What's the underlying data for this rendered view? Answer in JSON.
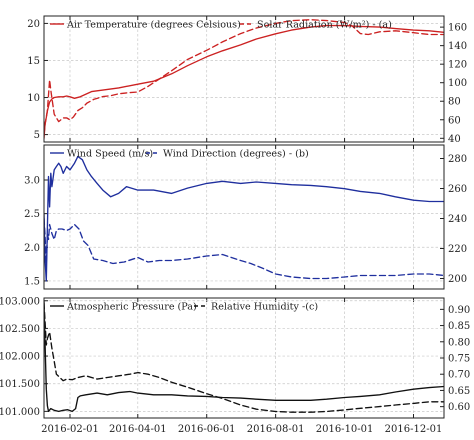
{
  "chart_data": [
    {
      "type": "line",
      "title": "",
      "xlabel": "",
      "ylabel": "",
      "grid": true,
      "legend_placement": "top-left",
      "x_ticks": [
        "2016-02-01",
        "2016-04-01",
        "2016-06-01",
        "2016-08-01",
        "2016-10-01",
        "2016-12-01"
      ],
      "y_left": {
        "lim": [
          4,
          21
        ],
        "ticks": [
          "5",
          "10",
          "15",
          "20"
        ]
      },
      "y_right": {
        "lim": [
          36,
          172
        ],
        "ticks": [
          "40",
          "60",
          "80",
          "100",
          "120",
          "140",
          "160"
        ]
      },
      "legend": [
        {
          "label": "Air Temperature (degrees Celsious)",
          "series": 0
        },
        {
          "label": "Solar Radiation (W/m²) - (a)",
          "series": 1
        }
      ],
      "series": [
        {
          "name": "Air Temperature (degrees Celsious)",
          "axis": "left",
          "color": "#cc2222",
          "dash": "solid",
          "x": [
            "2016-01-09",
            "2016-01-10",
            "2016-01-11",
            "2016-01-12",
            "2016-01-13",
            "2016-01-14",
            "2016-01-16",
            "2016-01-18",
            "2016-01-22",
            "2016-01-26",
            "2016-01-29",
            "2016-02-01",
            "2016-02-05",
            "2016-02-10",
            "2016-02-20",
            "2016-03-01",
            "2016-03-15",
            "2016-04-01",
            "2016-04-15",
            "2016-05-01",
            "2016-05-15",
            "2016-06-01",
            "2016-06-15",
            "2016-07-01",
            "2016-07-15",
            "2016-08-01",
            "2016-08-15",
            "2016-09-01",
            "2016-09-15",
            "2016-10-01",
            "2016-10-15",
            "2016-11-01",
            "2016-11-15",
            "2016-12-01",
            "2016-12-15",
            "2016-12-28"
          ],
          "values": [
            4.5,
            6.5,
            7.3,
            8.2,
            8.8,
            9.4,
            9.8,
            10.0,
            10.1,
            10.1,
            10.2,
            10.1,
            9.9,
            10.1,
            10.8,
            11.0,
            11.3,
            11.8,
            12.2,
            13.2,
            14.3,
            15.5,
            16.3,
            17.1,
            17.9,
            18.6,
            19.1,
            19.5,
            19.7,
            19.7,
            19.6,
            19.5,
            19.3,
            19.1,
            19.0,
            18.8
          ]
        },
        {
          "name": "Solar Radiation (W/m²) - (a)",
          "axis": "right",
          "color": "#cc2222",
          "dash": "dashed",
          "x": [
            "2016-01-09",
            "2016-01-10",
            "2016-01-12",
            "2016-01-14",
            "2016-01-15",
            "2016-01-18",
            "2016-01-22",
            "2016-01-26",
            "2016-01-29",
            "2016-02-01",
            "2016-02-04",
            "2016-02-08",
            "2016-02-12",
            "2016-02-16",
            "2016-02-22",
            "2016-03-01",
            "2016-03-08",
            "2016-03-15",
            "2016-03-22",
            "2016-04-01",
            "2016-04-10",
            "2016-04-20",
            "2016-05-01",
            "2016-05-15",
            "2016-06-01",
            "2016-06-15",
            "2016-07-01",
            "2016-07-15",
            "2016-08-01",
            "2016-08-15",
            "2016-09-01",
            "2016-09-15",
            "2016-10-01",
            "2016-10-08",
            "2016-10-15",
            "2016-10-22",
            "2016-11-01",
            "2016-11-15",
            "2016-12-01",
            "2016-12-15",
            "2016-12-28"
          ],
          "values": [
            44,
            55,
            70,
            103,
            92,
            66,
            58,
            62,
            62,
            60,
            63,
            70,
            73,
            78,
            82,
            85,
            86,
            88,
            89,
            90,
            96,
            104,
            113,
            125,
            135,
            144,
            153,
            159,
            164,
            167,
            168,
            167,
            165,
            161,
            153,
            152,
            155,
            156,
            154,
            152,
            152
          ]
        }
      ]
    },
    {
      "type": "line",
      "title": "",
      "xlabel": "",
      "ylabel": "",
      "grid": true,
      "legend_placement": "top-left",
      "x_ticks": [
        "2016-02-01",
        "2016-04-01",
        "2016-06-01",
        "2016-08-01",
        "2016-10-01",
        "2016-12-01"
      ],
      "y_left": {
        "lim": [
          1.38,
          3.52
        ],
        "ticks": [
          "1.5",
          "2.0",
          "2.5",
          "3.0"
        ]
      },
      "y_right": {
        "lim": [
          193,
          289
        ],
        "ticks": [
          "200",
          "220",
          "240",
          "260",
          "280"
        ]
      },
      "legend": [
        {
          "label": "Wind Speed (m/s)",
          "series": 0
        },
        {
          "label": "Wind Direction (degrees) - (b)",
          "series": 1
        }
      ],
      "series": [
        {
          "name": "Wind Speed (m/s)",
          "axis": "left",
          "color": "#1f2f9e",
          "dash": "solid",
          "x": [
            "2016-01-09",
            "2016-01-10",
            "2016-01-11",
            "2016-01-12",
            "2016-01-13",
            "2016-01-14",
            "2016-01-15",
            "2016-01-16",
            "2016-01-18",
            "2016-01-20",
            "2016-01-22",
            "2016-01-24",
            "2016-01-26",
            "2016-01-29",
            "2016-02-01",
            "2016-02-05",
            "2016-02-08",
            "2016-02-12",
            "2016-02-16",
            "2016-02-20",
            "2016-02-25",
            "2016-03-01",
            "2016-03-08",
            "2016-03-15",
            "2016-03-22",
            "2016-04-01",
            "2016-04-15",
            "2016-05-01",
            "2016-05-15",
            "2016-06-01",
            "2016-06-15",
            "2016-07-01",
            "2016-07-15",
            "2016-08-01",
            "2016-08-15",
            "2016-09-01",
            "2016-09-15",
            "2016-10-01",
            "2016-10-15",
            "2016-11-01",
            "2016-11-15",
            "2016-12-01",
            "2016-12-15",
            "2016-12-28"
          ],
          "values": [
            2.5,
            1.8,
            1.5,
            2.3,
            3.05,
            2.6,
            3.1,
            2.9,
            3.15,
            3.2,
            3.25,
            3.2,
            3.1,
            3.2,
            3.15,
            3.25,
            3.35,
            3.3,
            3.15,
            3.05,
            2.95,
            2.85,
            2.75,
            2.8,
            2.9,
            2.85,
            2.85,
            2.8,
            2.88,
            2.95,
            2.98,
            2.95,
            2.97,
            2.95,
            2.93,
            2.92,
            2.9,
            2.87,
            2.83,
            2.8,
            2.75,
            2.7,
            2.68,
            2.68
          ]
        },
        {
          "name": "Wind Direction (degrees) - (b)",
          "axis": "right",
          "color": "#1f2f9e",
          "dash": "dashed",
          "x": [
            "2016-01-09",
            "2016-01-10",
            "2016-01-11",
            "2016-01-12",
            "2016-01-13",
            "2016-01-14",
            "2016-01-16",
            "2016-01-18",
            "2016-01-20",
            "2016-01-22",
            "2016-01-25",
            "2016-01-29",
            "2016-02-01",
            "2016-02-05",
            "2016-02-09",
            "2016-02-13",
            "2016-02-17",
            "2016-02-22",
            "2016-03-01",
            "2016-03-10",
            "2016-03-20",
            "2016-04-01",
            "2016-04-10",
            "2016-04-20",
            "2016-05-01",
            "2016-05-15",
            "2016-06-01",
            "2016-06-15",
            "2016-07-01",
            "2016-07-10",
            "2016-07-20",
            "2016-08-01",
            "2016-08-15",
            "2016-09-01",
            "2016-09-15",
            "2016-10-01",
            "2016-10-15",
            "2016-11-01",
            "2016-11-15",
            "2016-12-01",
            "2016-12-15",
            "2016-12-28"
          ],
          "values": [
            240,
            228,
            210,
            230,
            226,
            236,
            230,
            226,
            232,
            233,
            233,
            232,
            233,
            236,
            233,
            225,
            222,
            213,
            212,
            210,
            211,
            214,
            211,
            212,
            212,
            213,
            215,
            216,
            212,
            210,
            207,
            203,
            201,
            200,
            200,
            201,
            202,
            202,
            202,
            203,
            203,
            202
          ]
        }
      ]
    },
    {
      "type": "line",
      "title": "",
      "xlabel": "",
      "ylabel": "",
      "grid": true,
      "legend_placement": "top-left",
      "x_ticks": [
        "2016-02-01",
        "2016-04-01",
        "2016-06-01",
        "2016-08-01",
        "2016-10-01",
        "2016-12-01"
      ],
      "y_left": {
        "lim": [
          100.88,
          103.05
        ],
        "ticks": [
          "101.000",
          "101.500",
          "102.000",
          "102.500",
          "103.000"
        ]
      },
      "y_right": {
        "lim": [
          0.565,
          0.935
        ],
        "ticks": [
          "0.60",
          "0.65",
          "0.70",
          "0.75",
          "0.80",
          "0.85",
          "0.90"
        ]
      },
      "legend": [
        {
          "label": "Atmospheric Pressure (Pa)",
          "series": 0
        },
        {
          "label": "Relative Humidity -(c)",
          "series": 1
        }
      ],
      "series": [
        {
          "name": "Atmospheric Pressure (Pa)",
          "axis": "left",
          "color": "#111111",
          "dash": "solid",
          "x": [
            "2016-01-09",
            "2016-01-10",
            "2016-01-11",
            "2016-01-12",
            "2016-01-13",
            "2016-01-15",
            "2016-01-18",
            "2016-01-22",
            "2016-01-26",
            "2016-01-30",
            "2016-02-03",
            "2016-02-06",
            "2016-02-08",
            "2016-02-10",
            "2016-02-15",
            "2016-02-25",
            "2016-03-05",
            "2016-03-15",
            "2016-03-25",
            "2016-04-01",
            "2016-04-15",
            "2016-05-01",
            "2016-05-15",
            "2016-06-01",
            "2016-06-15",
            "2016-07-01",
            "2016-07-15",
            "2016-08-01",
            "2016-08-15",
            "2016-09-01",
            "2016-09-15",
            "2016-10-01",
            "2016-10-15",
            "2016-11-01",
            "2016-11-15",
            "2016-12-01",
            "2016-12-15",
            "2016-12-28"
          ],
          "values": [
            103.0,
            102.2,
            101.4,
            101.1,
            101.0,
            101.05,
            101.02,
            101.0,
            101.02,
            101.03,
            101.0,
            101.05,
            101.25,
            101.28,
            101.3,
            101.33,
            101.3,
            101.34,
            101.36,
            101.33,
            101.3,
            101.3,
            101.28,
            101.27,
            101.25,
            101.24,
            101.22,
            101.2,
            101.2,
            101.2,
            101.22,
            101.25,
            101.27,
            101.3,
            101.35,
            101.4,
            101.43,
            101.45
          ]
        },
        {
          "name": "Relative Humidity -(c)",
          "axis": "right",
          "color": "#111111",
          "dash": "dashed",
          "x": [
            "2016-01-09",
            "2016-01-10",
            "2016-01-11",
            "2016-01-12",
            "2016-01-14",
            "2016-01-16",
            "2016-01-18",
            "2016-01-20",
            "2016-01-23",
            "2016-01-26",
            "2016-01-29",
            "2016-02-03",
            "2016-02-08",
            "2016-02-15",
            "2016-02-25",
            "2016-03-05",
            "2016-03-15",
            "2016-03-25",
            "2016-04-01",
            "2016-04-10",
            "2016-04-20",
            "2016-05-01",
            "2016-05-15",
            "2016-06-01",
            "2016-06-15",
            "2016-07-01",
            "2016-07-15",
            "2016-08-01",
            "2016-08-15",
            "2016-09-01",
            "2016-09-15",
            "2016-10-01",
            "2016-10-15",
            "2016-11-01",
            "2016-11-15",
            "2016-12-01",
            "2016-12-15",
            "2016-12-28"
          ],
          "values": [
            0.92,
            0.86,
            0.79,
            0.81,
            0.83,
            0.78,
            0.74,
            0.7,
            0.69,
            0.68,
            0.685,
            0.683,
            0.69,
            0.695,
            0.685,
            0.69,
            0.695,
            0.7,
            0.705,
            0.7,
            0.69,
            0.675,
            0.66,
            0.64,
            0.625,
            0.605,
            0.592,
            0.585,
            0.583,
            0.583,
            0.585,
            0.59,
            0.595,
            0.6,
            0.605,
            0.61,
            0.615,
            0.615
          ]
        }
      ]
    }
  ]
}
